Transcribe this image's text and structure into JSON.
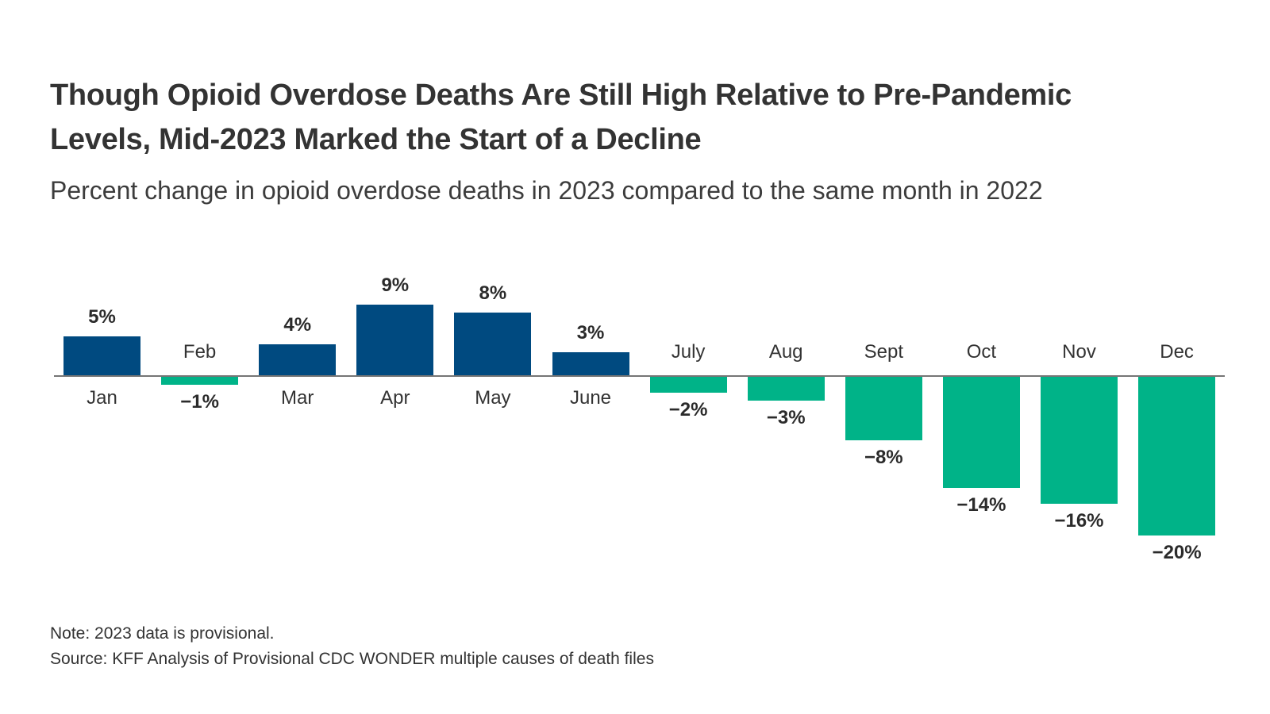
{
  "header": {
    "title_line1": "Though Opioid Overdose Deaths Are Still High Relative to Pre-Pandemic",
    "title_line2": "Levels, Mid-2023 Marked the Start of a Decline",
    "subtitle": "Percent change in opioid overdose deaths in 2023 compared to the same month in 2022"
  },
  "footer": {
    "note": "Note: 2023 data is provisional.",
    "source": "Source: KFF Analysis of Provisional CDC WONDER multiple causes of death files"
  },
  "chart_data": {
    "type": "bar",
    "title": "Though Opioid Overdose Deaths Are Still High Relative to Pre-Pandemic Levels, Mid-2023 Marked the Start of a Decline",
    "subtitle": "Percent change in opioid overdose deaths in 2023 compared to the same month in 2022",
    "categories": [
      "Jan",
      "Feb",
      "Mar",
      "Apr",
      "May",
      "June",
      "July",
      "Aug",
      "Sept",
      "Oct",
      "Nov",
      "Dec"
    ],
    "values": [
      5,
      -1,
      4,
      9,
      8,
      3,
      -2,
      -3,
      -8,
      -14,
      -16,
      -20
    ],
    "data_labels": [
      "5%",
      "−1%",
      "4%",
      "9%",
      "8%",
      "3%",
      "−2%",
      "−3%",
      "−8%",
      "−14%",
      "−16%",
      "−20%"
    ],
    "unit": "%",
    "xlabel": "",
    "ylabel": "",
    "ylim": [
      -22,
      10
    ],
    "grid": false,
    "legend": "none",
    "baseline": 0,
    "colors": {
      "positive_bar": "#004A80",
      "negative_bar": "#00B388",
      "axis_line": "#757575",
      "text": "#333333"
    },
    "note": "Note: 2023 data is provisional.",
    "source": "Source: KFF Analysis of Provisional CDC WONDER multiple causes of death files"
  }
}
